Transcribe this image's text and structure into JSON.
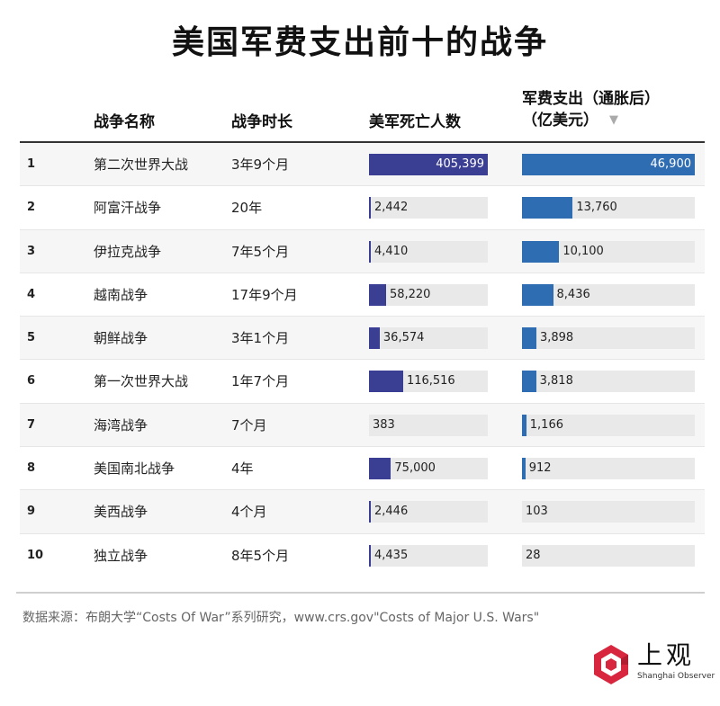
{
  "title": "美国军费支出前十的战争",
  "headers": {
    "name": "战争名称",
    "duration": "战争时长",
    "deaths": "美军死亡人数",
    "cost_line1": "军费支出（通胀后）",
    "cost_line2": "（亿美元）",
    "sort_icon": "triangle-down-icon"
  },
  "colors": {
    "deaths_bar": "#3b3f94",
    "cost_bar": "#2f6db3",
    "track": "#e9e9e9"
  },
  "chart_data": {
    "type": "table",
    "title": "美国军费支出前十的战争",
    "columns": [
      "",
      "战争名称",
      "战争时长",
      "美军死亡人数",
      "军费支出（通胀后）（亿美元）"
    ],
    "deaths_max": 405399,
    "cost_max": 46900,
    "rows": [
      {
        "rank": "1",
        "name": "第二次世界大战",
        "duration": "3年9个月",
        "deaths": 405399,
        "deaths_label": "405,399",
        "cost": 46900,
        "cost_label": "46,900"
      },
      {
        "rank": "2",
        "name": "阿富汗战争",
        "duration": "20年",
        "deaths": 2442,
        "deaths_label": "2,442",
        "cost": 13760,
        "cost_label": "13,760"
      },
      {
        "rank": "3",
        "name": "伊拉克战争",
        "duration": "7年5个月",
        "deaths": 4410,
        "deaths_label": "4,410",
        "cost": 10100,
        "cost_label": "10,100"
      },
      {
        "rank": "4",
        "name": "越南战争",
        "duration": "17年9个月",
        "deaths": 58220,
        "deaths_label": "58,220",
        "cost": 8436,
        "cost_label": "8,436"
      },
      {
        "rank": "5",
        "name": "朝鲜战争",
        "duration": "3年1个月",
        "deaths": 36574,
        "deaths_label": "36,574",
        "cost": 3898,
        "cost_label": "3,898"
      },
      {
        "rank": "6",
        "name": "第一次世界大战",
        "duration": "1年7个月",
        "deaths": 116516,
        "deaths_label": "116,516",
        "cost": 3818,
        "cost_label": "3,818"
      },
      {
        "rank": "7",
        "name": "海湾战争",
        "duration": "7个月",
        "deaths": 383,
        "deaths_label": "383",
        "cost": 1166,
        "cost_label": "1,166"
      },
      {
        "rank": "8",
        "name": "美国南北战争",
        "duration": "4年",
        "deaths": 75000,
        "deaths_label": "75,000",
        "cost": 912,
        "cost_label": "912"
      },
      {
        "rank": "9",
        "name": "美西战争",
        "duration": "4个月",
        "deaths": 2446,
        "deaths_label": "2,446",
        "cost": 103,
        "cost_label": "103"
      },
      {
        "rank": "10",
        "name": "独立战争",
        "duration": "8年5个月",
        "deaths": 4435,
        "deaths_label": "4,435",
        "cost": 28,
        "cost_label": "28"
      }
    ]
  },
  "source": "数据来源：布朗大学“Costs Of War”系列研究，www.crs.gov\"Costs of Major U.S. Wars\"",
  "logo": {
    "name": "上观",
    "subtitle": "Shanghai Observer",
    "icon": "shanghai-observer-logo-icon"
  }
}
